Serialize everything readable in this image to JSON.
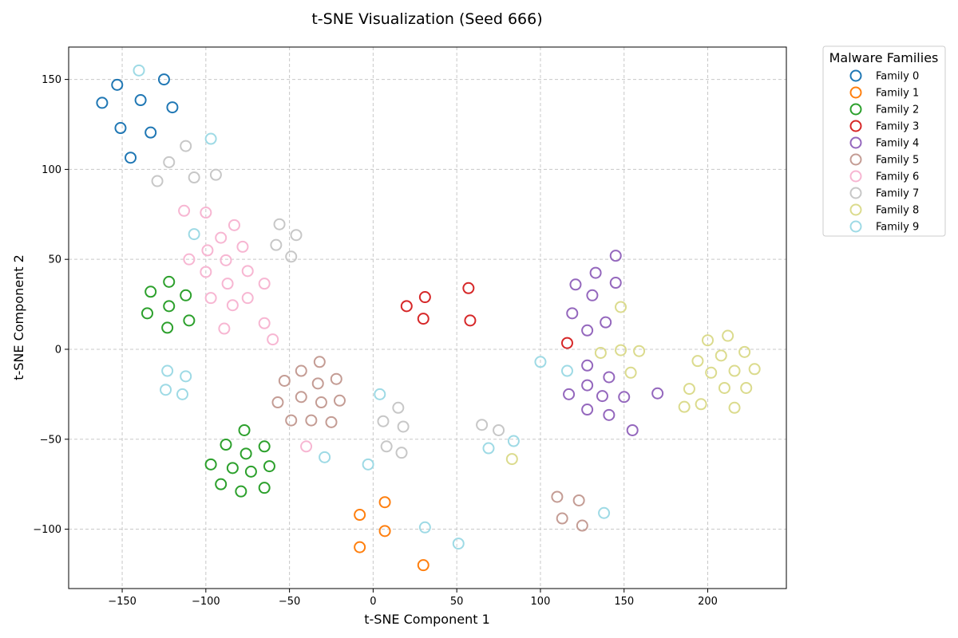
{
  "chart_data": {
    "type": "scatter",
    "title": "t-SNE Visualization (Seed 666)",
    "xlabel": "t-SNE Component 1",
    "ylabel": "t-SNE Component 2",
    "xlim": [
      -182,
      247
    ],
    "ylim": [
      -133,
      168
    ],
    "x_ticks": [
      -150,
      -100,
      -50,
      0,
      50,
      100,
      150,
      200
    ],
    "y_ticks": [
      -100,
      -50,
      0,
      50,
      100,
      150
    ],
    "grid": true,
    "marker": "hollow-circle",
    "legend": {
      "title": "Malware Families",
      "placement": "outside-top-right"
    },
    "series": [
      {
        "name": "Family 0",
        "color": "#1f77b4",
        "points": [
          [
            -162,
            137
          ],
          [
            -153,
            147
          ],
          [
            -139,
            138.5
          ],
          [
            -125,
            150
          ],
          [
            -151,
            123
          ],
          [
            -133,
            120.5
          ],
          [
            -120,
            134.5
          ],
          [
            -145,
            106.5
          ]
        ]
      },
      {
        "name": "Family 1",
        "color": "#ff7f0e",
        "points": [
          [
            -8,
            -92
          ],
          [
            7,
            -85
          ],
          [
            7,
            -101
          ],
          [
            -8,
            -110
          ],
          [
            30,
            -120
          ]
        ]
      },
      {
        "name": "Family 2",
        "color": "#2ca02c",
        "points": [
          [
            -133,
            32
          ],
          [
            -122,
            37.5
          ],
          [
            -112,
            30
          ],
          [
            -135,
            20
          ],
          [
            -122,
            24
          ],
          [
            -110,
            16
          ],
          [
            -123,
            12
          ],
          [
            -77,
            -45
          ],
          [
            -88,
            -53
          ],
          [
            -65,
            -54
          ],
          [
            -97,
            -64
          ],
          [
            -76,
            -58
          ],
          [
            -84,
            -66
          ],
          [
            -73,
            -68
          ],
          [
            -62,
            -65
          ],
          [
            -91,
            -75
          ],
          [
            -79,
            -79
          ],
          [
            -65,
            -77
          ]
        ]
      },
      {
        "name": "Family 3",
        "color": "#d62728",
        "points": [
          [
            20,
            24
          ],
          [
            31,
            29
          ],
          [
            30,
            17
          ],
          [
            57,
            34
          ],
          [
            58,
            16
          ],
          [
            116,
            3.5
          ]
        ]
      },
      {
        "name": "Family 4",
        "color": "#9467bd",
        "points": [
          [
            145,
            52
          ],
          [
            133,
            42.5
          ],
          [
            121,
            36
          ],
          [
            131,
            30
          ],
          [
            145,
            37
          ],
          [
            119,
            20
          ],
          [
            139,
            15
          ],
          [
            128,
            10.5
          ],
          [
            128,
            -9
          ],
          [
            141,
            -15.5
          ],
          [
            117,
            -25
          ],
          [
            128,
            -20
          ],
          [
            137,
            -26
          ],
          [
            150,
            -26.5
          ],
          [
            170,
            -24.5
          ],
          [
            128,
            -33.5
          ],
          [
            141,
            -36.5
          ],
          [
            155,
            -45
          ]
        ]
      },
      {
        "name": "Family 5",
        "color": "#c49c94",
        "points": [
          [
            -32,
            -7
          ],
          [
            -43,
            -12
          ],
          [
            -22,
            -16.5
          ],
          [
            -53,
            -17.5
          ],
          [
            -33,
            -19
          ],
          [
            -43,
            -26.5
          ],
          [
            -57,
            -29.5
          ],
          [
            -31,
            -29.5
          ],
          [
            -20,
            -28.5
          ],
          [
            -49,
            -39.5
          ],
          [
            -37,
            -39.5
          ],
          [
            -25,
            -40.5
          ],
          [
            110,
            -82
          ],
          [
            123,
            -84
          ],
          [
            113,
            -94
          ],
          [
            125,
            -98
          ]
        ]
      },
      {
        "name": "Family 6",
        "color": "#f7b6d2",
        "points": [
          [
            -113,
            77
          ],
          [
            -100,
            76
          ],
          [
            -83,
            69
          ],
          [
            -91,
            62
          ],
          [
            -78,
            57
          ],
          [
            -110,
            50
          ],
          [
            -99,
            55
          ],
          [
            -88,
            49.5
          ],
          [
            -75,
            43.5
          ],
          [
            -100,
            43
          ],
          [
            -87,
            36.5
          ],
          [
            -65,
            36.5
          ],
          [
            -97,
            28.5
          ],
          [
            -84,
            24.5
          ],
          [
            -75,
            28.5
          ],
          [
            -65,
            14.5
          ],
          [
            -89,
            11.5
          ],
          [
            -60,
            5.5
          ],
          [
            -40,
            -54
          ]
        ]
      },
      {
        "name": "Family 7",
        "color": "#c7c7c7",
        "points": [
          [
            -112,
            113
          ],
          [
            -122,
            104
          ],
          [
            -107,
            95.5
          ],
          [
            -129,
            93.5
          ],
          [
            -94,
            97
          ],
          [
            -56,
            69.5
          ],
          [
            -46,
            63.5
          ],
          [
            -58,
            58
          ],
          [
            -49,
            51.5
          ],
          [
            15,
            -32.5
          ],
          [
            6,
            -40
          ],
          [
            18,
            -43
          ],
          [
            8,
            -54
          ],
          [
            17,
            -57.5
          ],
          [
            65,
            -42
          ],
          [
            75,
            -45
          ]
        ]
      },
      {
        "name": "Family 8",
        "color": "#dbdb8d",
        "points": [
          [
            148,
            23.5
          ],
          [
            136,
            -2
          ],
          [
            148,
            -0.5
          ],
          [
            159,
            -1
          ],
          [
            200,
            5
          ],
          [
            212,
            7.5
          ],
          [
            222,
            -1.5
          ],
          [
            208,
            -3.5
          ],
          [
            194,
            -6.5
          ],
          [
            216,
            -12
          ],
          [
            228,
            -11
          ],
          [
            202,
            -13
          ],
          [
            154,
            -13
          ],
          [
            189,
            -22
          ],
          [
            210,
            -21.5
          ],
          [
            223,
            -21.5
          ],
          [
            196,
            -30.5
          ],
          [
            186,
            -32
          ],
          [
            216,
            -32.5
          ],
          [
            83,
            -61
          ]
        ]
      },
      {
        "name": "Family 9",
        "color": "#9edae5",
        "points": [
          [
            -140,
            155
          ],
          [
            -97,
            117
          ],
          [
            -107,
            64
          ],
          [
            -123,
            -12
          ],
          [
            -112,
            -15
          ],
          [
            -124,
            -22.5
          ],
          [
            -114,
            -25
          ],
          [
            4,
            -25
          ],
          [
            100,
            -7
          ],
          [
            116,
            -12
          ],
          [
            84,
            -51
          ],
          [
            69,
            -55
          ],
          [
            -29,
            -60
          ],
          [
            -3,
            -64
          ],
          [
            31,
            -99
          ],
          [
            51,
            -108
          ],
          [
            138,
            -91
          ]
        ]
      }
    ]
  }
}
